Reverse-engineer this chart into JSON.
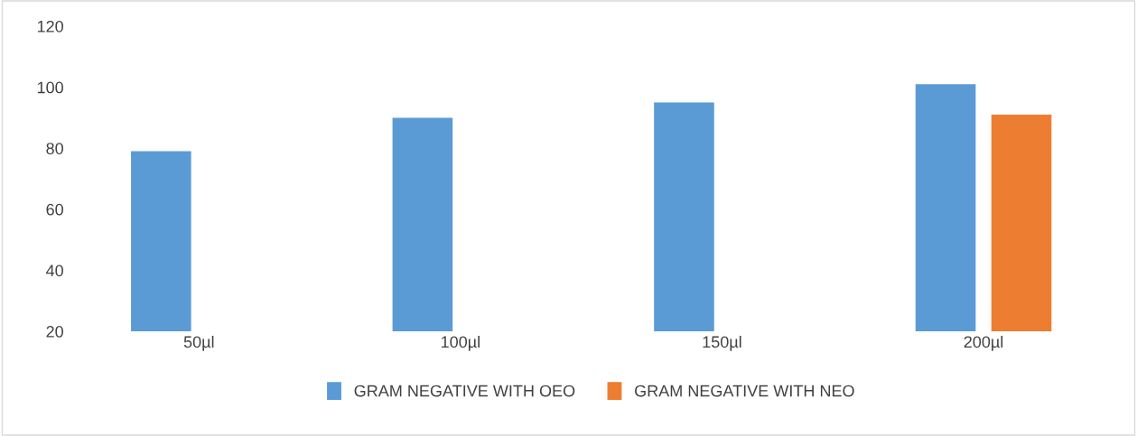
{
  "chart_data": {
    "type": "bar",
    "categories": [
      "50µl",
      "100µl",
      "150µl",
      "200µl"
    ],
    "series": [
      {
        "name": "GRAM NEGATIVE WITH OEO",
        "color": "#5b9bd5",
        "values": [
          79,
          90,
          95,
          101
        ]
      },
      {
        "name": "GRAM NEGATIVE WITH NEO",
        "color": "#ed7d31",
        "values": [
          null,
          null,
          null,
          91
        ]
      }
    ],
    "ylim": [
      20,
      120
    ],
    "yticks": [
      20,
      40,
      60,
      80,
      100,
      120
    ],
    "grid": false,
    "legend": "bottom"
  }
}
